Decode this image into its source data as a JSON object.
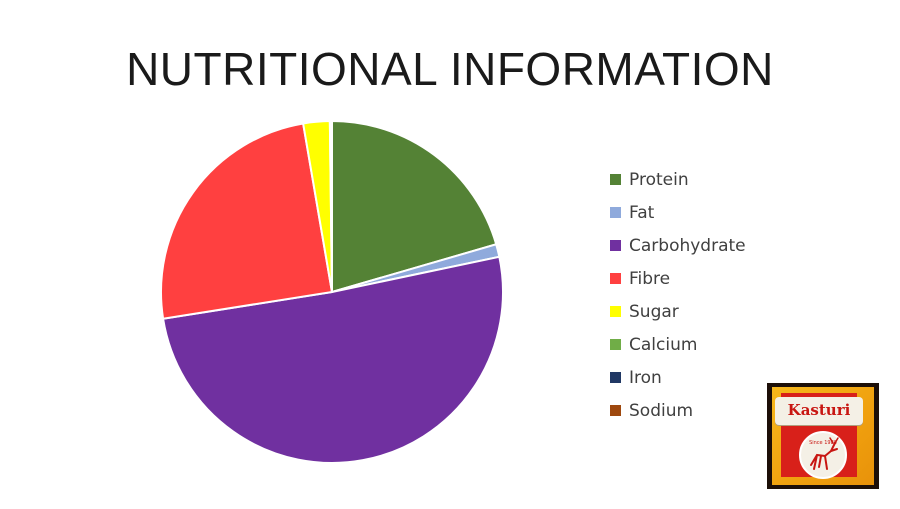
{
  "slide": {
    "title": "NUTRITIONAL INFORMATION"
  },
  "logo": {
    "brand": "Kasturi",
    "tagline": "Since 1980"
  },
  "chart_data": {
    "type": "pie",
    "title": "",
    "legend_position": "right",
    "slices": [
      {
        "label": "Protein",
        "value": 20.5,
        "color": "#548235"
      },
      {
        "label": "Fat",
        "value": 1.2,
        "color": "#8faadc"
      },
      {
        "label": "Carbohydrate",
        "value": 50.8,
        "color": "#7030a0"
      },
      {
        "label": "Fibre",
        "value": 24.8,
        "color": "#ff4040"
      },
      {
        "label": "Sugar",
        "value": 2.5,
        "color": "#ffff00"
      },
      {
        "label": "Calcium",
        "value": 0.1,
        "color": "#70ad47"
      },
      {
        "label": "Iron",
        "value": 0.05,
        "color": "#203864"
      },
      {
        "label": "Sodium",
        "value": 0.05,
        "color": "#9e480e"
      }
    ]
  }
}
